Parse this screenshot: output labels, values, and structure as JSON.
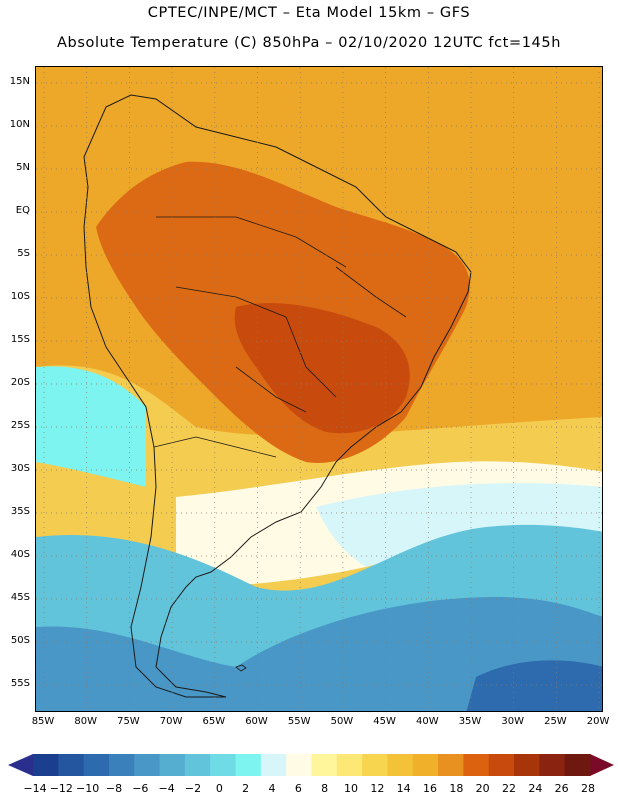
{
  "header": {
    "title_line1": "CPTEC/INPE/MCT  –   Eta Model 15km  –  GFS",
    "title_line2": "Absolute Temperature (C) 850hPa – 02/10/2020 12UTC fct=145h"
  },
  "map": {
    "lat_labels": [
      "15N",
      "10N",
      "5N",
      "EQ",
      "5S",
      "10S",
      "15S",
      "20S",
      "25S",
      "30S",
      "35S",
      "40S",
      "45S",
      "50S",
      "55S"
    ],
    "lon_labels": [
      "85W",
      "80W",
      "75W",
      "70W",
      "65W",
      "60W",
      "55W",
      "50W",
      "45W",
      "40W",
      "35W",
      "30W",
      "25W",
      "20W"
    ],
    "colors": {
      "ocean_north": "#eda82a",
      "gridline": "#8a7a6a",
      "border": "#1a1a1a"
    }
  },
  "colorbar": {
    "labels": [
      "-14",
      "-12",
      "-10",
      "-8",
      "-6",
      "-4",
      "-2",
      "0",
      "2",
      "4",
      "6",
      "8",
      "10",
      "12",
      "14",
      "16",
      "18",
      "20",
      "22",
      "24",
      "26",
      "28"
    ],
    "colors": [
      "#1a3f8e",
      "#24559f",
      "#2e6aae",
      "#3a80bb",
      "#4897c6",
      "#55aed0",
      "#62c4db",
      "#6fdce5",
      "#7df4f0",
      "#d6f6fa",
      "#fffbe4",
      "#fff59a",
      "#fde876",
      "#f8d54e",
      "#f4c238",
      "#f0b02a",
      "#e89020",
      "#dc6210",
      "#c84a0c",
      "#a8340a",
      "#8a2410",
      "#6e1810"
    ],
    "arrow_low_color": "#2a2e8c",
    "arrow_high_color": "#7a0a28"
  }
}
